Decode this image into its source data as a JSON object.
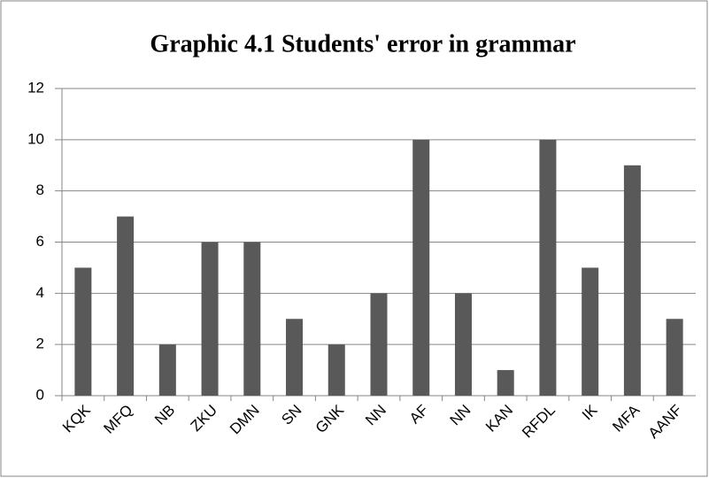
{
  "chart_data": {
    "type": "bar",
    "title": "Graphic 4.1 Students' error in grammar",
    "categories": [
      "KQK",
      "MFQ",
      "NB",
      "ZKU",
      "DMN",
      "SN",
      "GNK",
      "NN",
      "AF",
      "NN",
      "KAN",
      "RFDL",
      "IK",
      "MFA",
      "AANF"
    ],
    "values": [
      5,
      7,
      2,
      6,
      6,
      3,
      2,
      4,
      10,
      4,
      1,
      10,
      5,
      9,
      3
    ],
    "color": "#595959",
    "ylim": [
      0,
      12
    ],
    "yticks": [
      0,
      2,
      4,
      6,
      8,
      10,
      12
    ],
    "grid": true
  }
}
